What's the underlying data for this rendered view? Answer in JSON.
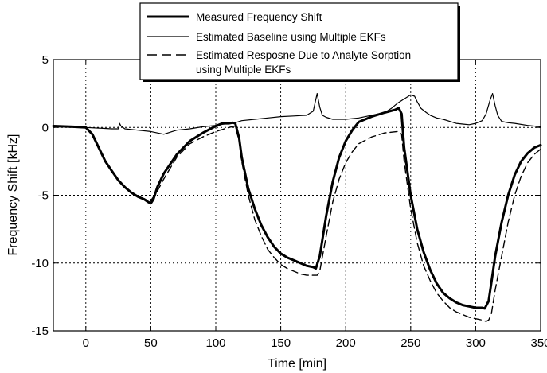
{
  "chart_data": {
    "type": "line",
    "title": "",
    "xlabel": "Time [min]",
    "ylabel": "Frequency Shift [kHz]",
    "xlim": [
      -25,
      350
    ],
    "ylim": [
      -15,
      5
    ],
    "xticks": [
      0,
      50,
      100,
      150,
      200,
      250,
      300,
      350
    ],
    "yticks": [
      -15,
      -10,
      -5,
      0,
      5
    ],
    "grid": true,
    "legend_position": "top-center",
    "series": [
      {
        "name": "Measured Frequency Shift",
        "style": "thick-solid",
        "x": [
          -25,
          -10,
          0,
          5,
          10,
          15,
          20,
          25,
          30,
          35,
          40,
          45,
          48,
          50,
          52,
          55,
          60,
          70,
          80,
          90,
          100,
          105,
          110,
          113,
          115,
          118,
          120,
          125,
          130,
          135,
          140,
          145,
          150,
          155,
          160,
          165,
          170,
          175,
          177,
          180,
          185,
          190,
          195,
          200,
          205,
          210,
          220,
          230,
          238,
          240,
          241,
          243,
          245,
          250,
          255,
          260,
          265,
          270,
          275,
          280,
          285,
          290,
          295,
          300,
          305,
          307,
          310,
          312,
          315,
          320,
          325,
          330,
          335,
          340,
          345,
          350
        ],
        "y": [
          0.1,
          0.05,
          0,
          -0.5,
          -1.5,
          -2.5,
          -3.2,
          -3.9,
          -4.4,
          -4.8,
          -5.1,
          -5.3,
          -5.5,
          -5.6,
          -5.3,
          -4.4,
          -3.4,
          -2.0,
          -1.0,
          -0.4,
          0.1,
          0.3,
          0.3,
          0.35,
          0.3,
          -0.8,
          -2.2,
          -4.5,
          -6.0,
          -7.2,
          -8.1,
          -8.8,
          -9.3,
          -9.6,
          -9.8,
          -10.0,
          -10.2,
          -10.3,
          -10.4,
          -9.5,
          -6.5,
          -4.0,
          -2.2,
          -1.0,
          -0.2,
          0.4,
          0.8,
          1.1,
          1.3,
          1.4,
          1.4,
          1.0,
          -1.5,
          -5.0,
          -7.5,
          -9.2,
          -10.5,
          -11.5,
          -12.2,
          -12.6,
          -12.9,
          -13.1,
          -13.2,
          -13.3,
          -13.3,
          -13.35,
          -12.8,
          -11.5,
          -9.5,
          -7.0,
          -5.0,
          -3.5,
          -2.5,
          -1.9,
          -1.5,
          -1.3
        ]
      },
      {
        "name": "Estimated Baseline using Multiple EKFs",
        "style": "thin-solid",
        "x": [
          -25,
          0,
          10,
          20,
          25,
          26,
          27,
          30,
          40,
          50,
          60,
          65,
          70,
          80,
          90,
          100,
          110,
          115,
          120,
          130,
          140,
          150,
          160,
          170,
          175,
          178,
          180,
          182,
          185,
          190,
          200,
          210,
          220,
          230,
          235,
          240,
          245,
          250,
          253,
          255,
          258,
          262,
          265,
          270,
          275,
          280,
          285,
          290,
          295,
          300,
          305,
          308,
          311,
          313,
          315,
          317,
          320,
          325,
          330,
          340,
          350
        ],
        "y": [
          0.1,
          0,
          -0.05,
          -0.1,
          -0.1,
          0.3,
          0.1,
          -0.1,
          -0.2,
          -0.3,
          -0.5,
          -0.35,
          -0.2,
          -0.1,
          0.05,
          0.15,
          0.3,
          0.35,
          0.5,
          0.6,
          0.7,
          0.8,
          0.85,
          0.9,
          1.2,
          2.5,
          1.5,
          0.9,
          0.75,
          0.6,
          0.6,
          0.7,
          0.9,
          1.1,
          1.4,
          1.8,
          2.1,
          2.4,
          2.3,
          1.9,
          1.4,
          1.1,
          0.9,
          0.7,
          0.6,
          0.45,
          0.3,
          0.25,
          0.2,
          0.3,
          0.5,
          1.0,
          2.0,
          2.5,
          1.6,
          0.9,
          0.45,
          0.35,
          0.3,
          0.15,
          0.05
        ]
      },
      {
        "name": "Estimated Resposne Due to Analyte Sorption using Multiple EKFs",
        "style": "dashed",
        "x": [
          -25,
          0,
          5,
          10,
          15,
          20,
          25,
          30,
          35,
          40,
          45,
          50,
          55,
          60,
          70,
          80,
          90,
          100,
          110,
          115,
          118,
          120,
          125,
          130,
          135,
          140,
          145,
          150,
          155,
          160,
          165,
          170,
          175,
          178,
          180,
          185,
          190,
          195,
          200,
          205,
          210,
          220,
          230,
          240,
          243,
          245,
          250,
          255,
          260,
          265,
          270,
          275,
          280,
          285,
          290,
          295,
          300,
          305,
          308,
          310,
          312,
          315,
          320,
          325,
          330,
          335,
          340,
          345,
          350
        ],
        "y": [
          0.05,
          0,
          -0.6,
          -1.5,
          -2.5,
          -3.3,
          -3.9,
          -4.4,
          -4.8,
          -5.1,
          -5.3,
          -5.4,
          -4.7,
          -3.8,
          -2.2,
          -1.2,
          -0.7,
          -0.3,
          0.0,
          0.1,
          -1.0,
          -2.5,
          -5.0,
          -6.8,
          -8.0,
          -9.0,
          -9.6,
          -10.1,
          -10.4,
          -10.6,
          -10.8,
          -10.9,
          -10.9,
          -10.9,
          -10.6,
          -8.0,
          -5.5,
          -3.8,
          -2.6,
          -1.8,
          -1.2,
          -0.7,
          -0.4,
          -0.3,
          -0.5,
          -2.5,
          -6.0,
          -8.5,
          -10.2,
          -11.3,
          -12.2,
          -12.8,
          -13.3,
          -13.6,
          -13.8,
          -14.0,
          -14.1,
          -14.2,
          -14.3,
          -14.2,
          -13.8,
          -12.0,
          -9.5,
          -7.0,
          -5.0,
          -3.6,
          -2.6,
          -2.0,
          -1.6
        ]
      }
    ]
  }
}
